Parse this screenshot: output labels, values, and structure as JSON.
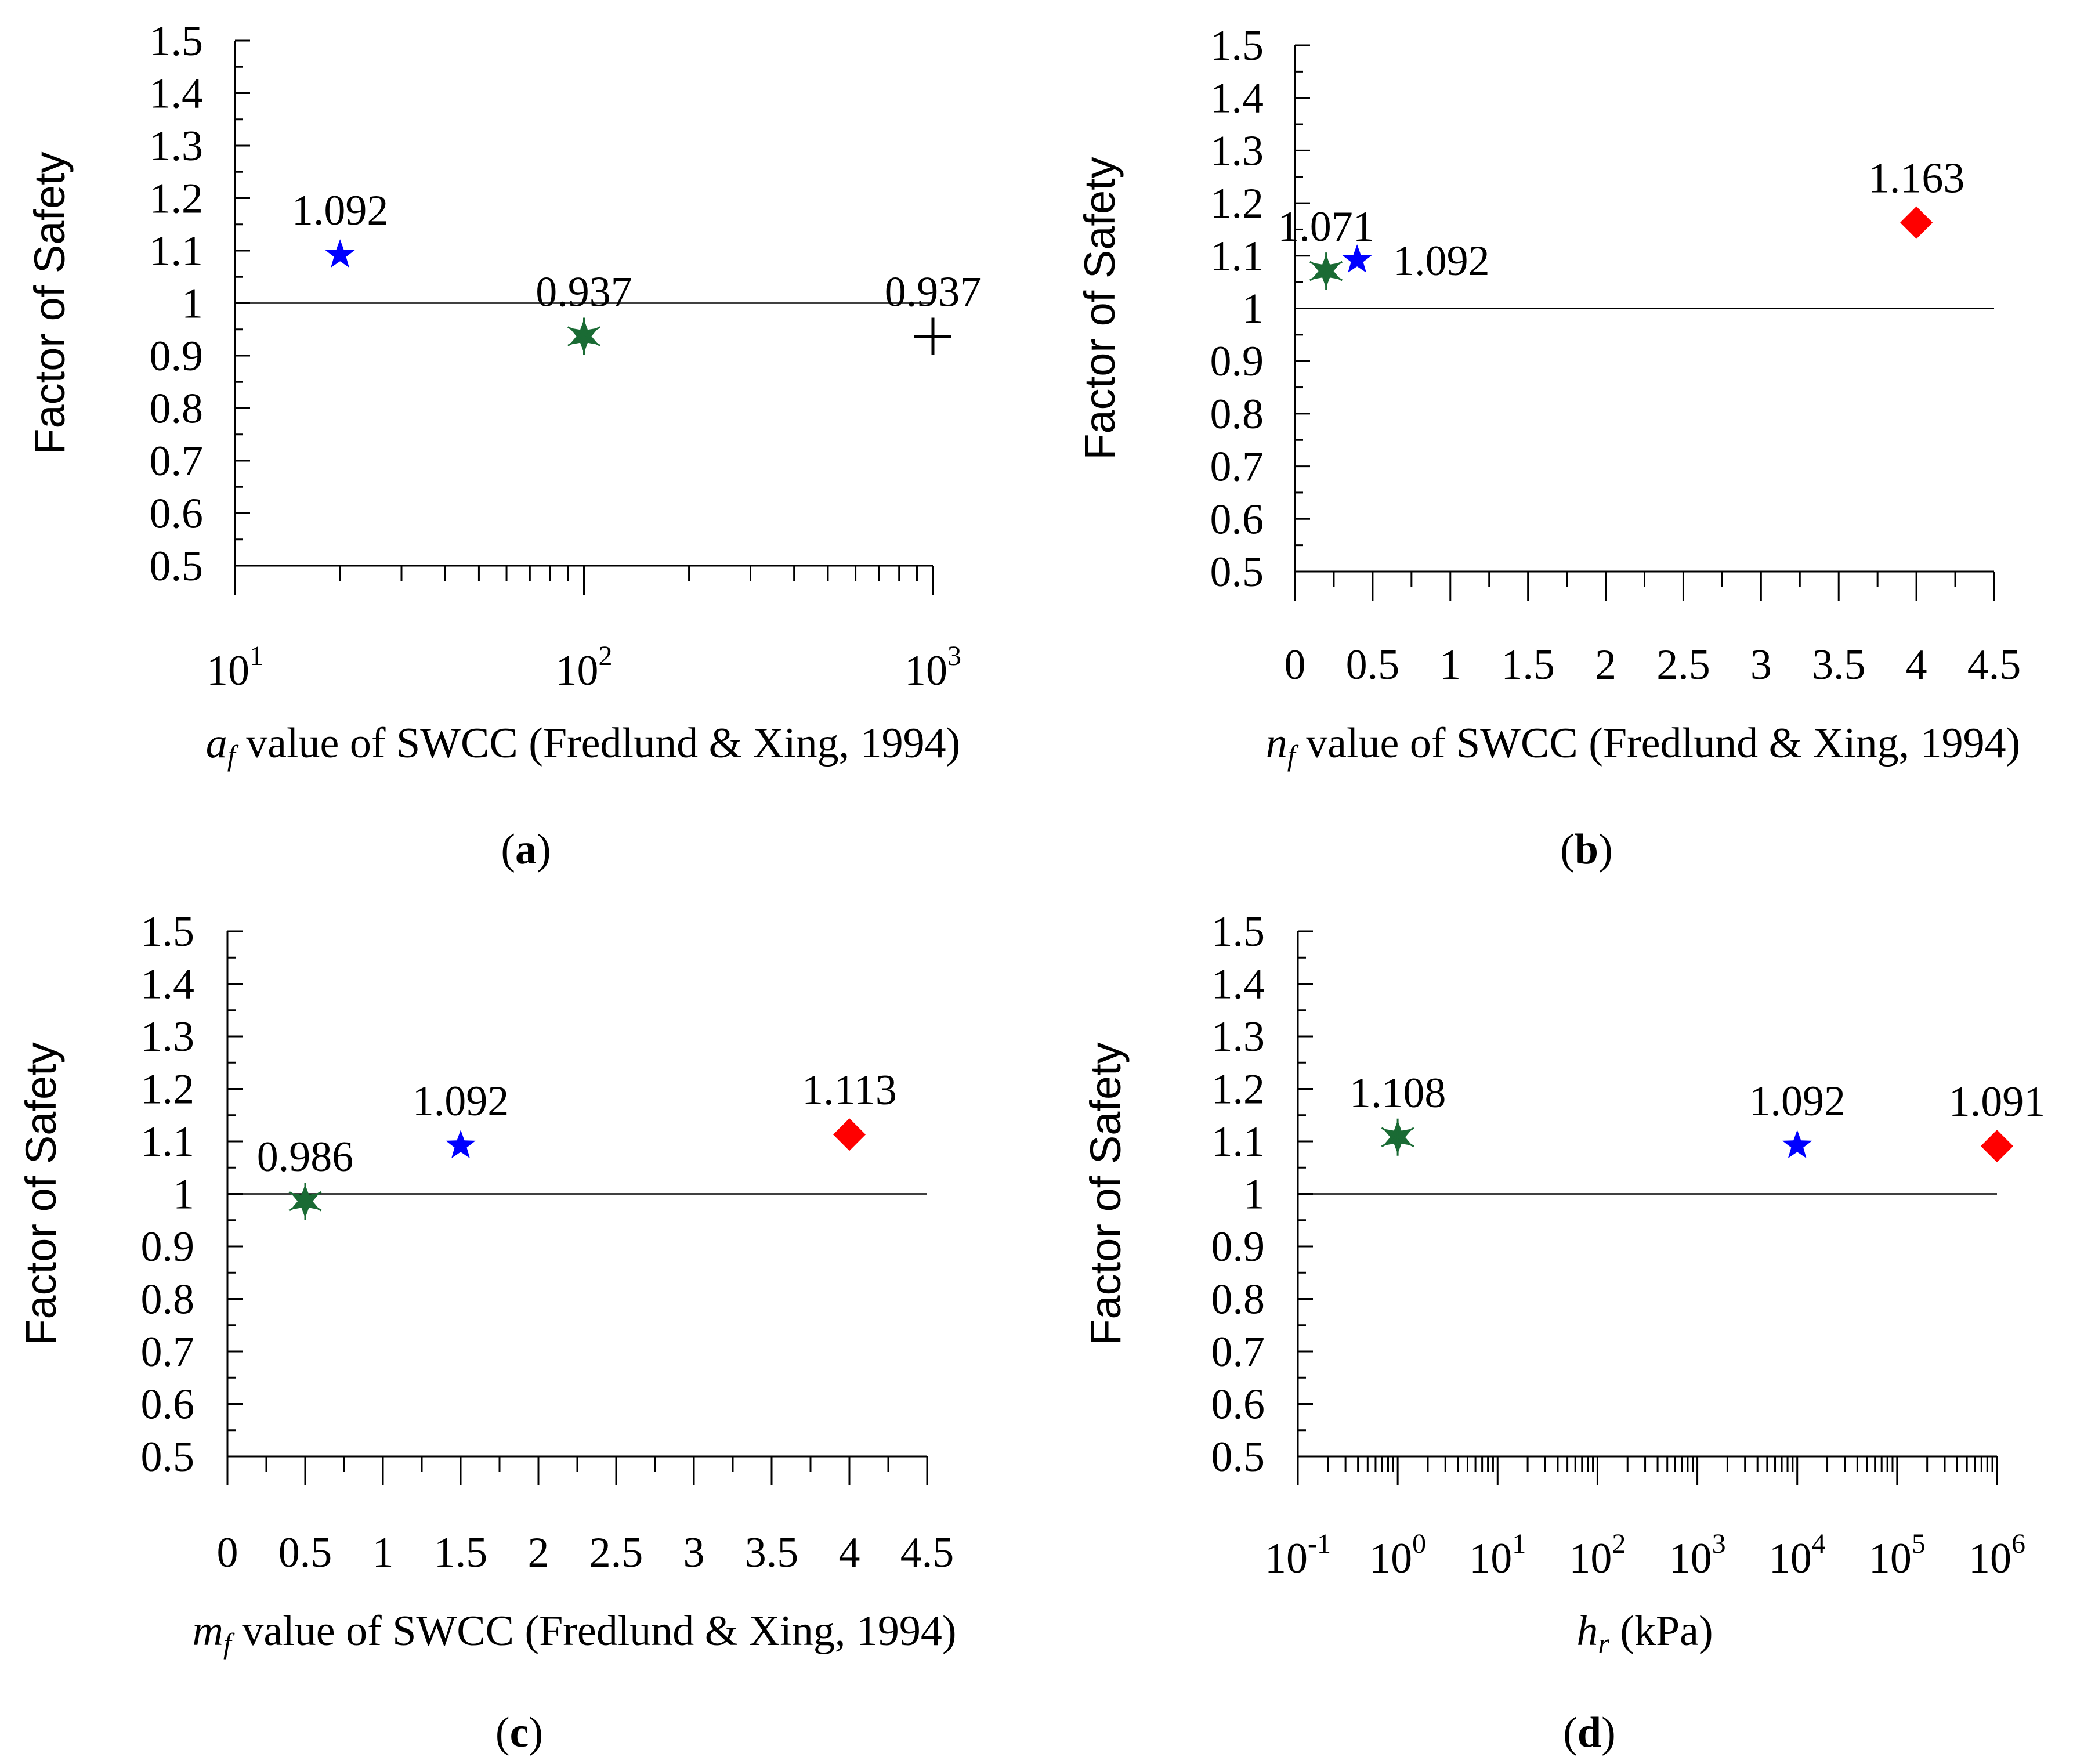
{
  "figure": {
    "y_axis_title": "Factor of Safety",
    "colors": {
      "blue_star": "#0000ff",
      "green_asterisk": "#1a6b34",
      "red_diamond": "#ff0000",
      "black_plus": "#000000",
      "axis": "#000000"
    }
  },
  "chart_data": [
    {
      "type": "scatter",
      "panel": "a",
      "panel_label": {
        "open": "(",
        "letter": "a",
        "close": ")"
      },
      "xlabel": {
        "var": "a",
        "sub": "f",
        "rest": " value of SWCC (Fredlund & Xing, 1994)"
      },
      "ylabel": "Factor of Safety",
      "xscale": "log",
      "xlim": [
        10,
        1000
      ],
      "ylim": [
        0.5,
        1.5
      ],
      "xticks": [
        {
          "base": "10",
          "exp": "1",
          "value": 10
        },
        {
          "base": "10",
          "exp": "2",
          "value": 100
        },
        {
          "base": "10",
          "exp": "3",
          "value": 1000
        }
      ],
      "yticks": [
        "0.5",
        "0.6",
        "0.7",
        "0.8",
        "0.9",
        "1",
        "1.1",
        "1.2",
        "1.3",
        "1.4",
        "1.5"
      ],
      "reference_line_y": 1,
      "reference_line_x_range": [
        10,
        1000
      ],
      "points": [
        {
          "x": 20,
          "y": 1.092,
          "label": "1.092",
          "marker": "star",
          "color": "#0000ff",
          "label_pos": "above"
        },
        {
          "x": 100,
          "y": 0.937,
          "label": "0.937",
          "marker": "asterisk",
          "color": "#1a6b34",
          "label_pos": "above"
        },
        {
          "x": 1000,
          "y": 0.937,
          "label": "0.937",
          "marker": "plus",
          "color": "#000000",
          "label_pos": "above"
        }
      ]
    },
    {
      "type": "scatter",
      "panel": "b",
      "panel_label": {
        "open": "(",
        "letter": "b",
        "close": ")"
      },
      "xlabel": {
        "var": "n",
        "sub": "f",
        "rest": " value of SWCC (Fredlund & Xing, 1994)"
      },
      "ylabel": "Factor of Safety",
      "xscale": "linear",
      "xlim": [
        0,
        4.5
      ],
      "ylim": [
        0.5,
        1.5
      ],
      "xticks": [
        {
          "label": "0",
          "value": 0
        },
        {
          "label": "0.5",
          "value": 0.5
        },
        {
          "label": "1",
          "value": 1
        },
        {
          "label": "1.5",
          "value": 1.5
        },
        {
          "label": "2",
          "value": 2
        },
        {
          "label": "2.5",
          "value": 2.5
        },
        {
          "label": "3",
          "value": 3
        },
        {
          "label": "3.5",
          "value": 3.5
        },
        {
          "label": "4",
          "value": 4
        },
        {
          "label": "4.5",
          "value": 4.5
        }
      ],
      "yticks": [
        "0.5",
        "0.6",
        "0.7",
        "0.8",
        "0.9",
        "1",
        "1.1",
        "1.2",
        "1.3",
        "1.4",
        "1.5"
      ],
      "reference_line_y": 1,
      "reference_line_x_range": [
        0,
        4.5
      ],
      "points": [
        {
          "x": 0.2,
          "y": 1.071,
          "label": "1.071",
          "marker": "asterisk",
          "color": "#1a6b34",
          "label_pos": "above"
        },
        {
          "x": 0.4,
          "y": 1.092,
          "label": "1.092",
          "marker": "star",
          "color": "#0000ff",
          "label_pos": "right"
        },
        {
          "x": 4.0,
          "y": 1.163,
          "label": "1.163",
          "marker": "diamond",
          "color": "#ff0000",
          "label_pos": "above"
        }
      ]
    },
    {
      "type": "scatter",
      "panel": "c",
      "panel_label": {
        "open": "(",
        "letter": "c",
        "close": ")"
      },
      "xlabel": {
        "var": "m",
        "sub": "f",
        "rest": "  value of SWCC (Fredlund & Xing, 1994)"
      },
      "ylabel": "Factor of Safety",
      "xscale": "linear",
      "xlim": [
        0,
        4.5
      ],
      "ylim": [
        0.5,
        1.5
      ],
      "xticks": [
        {
          "label": "0",
          "value": 0
        },
        {
          "label": "0.5",
          "value": 0.5
        },
        {
          "label": "1",
          "value": 1
        },
        {
          "label": "1.5",
          "value": 1.5
        },
        {
          "label": "2",
          "value": 2
        },
        {
          "label": "2.5",
          "value": 2.5
        },
        {
          "label": "3",
          "value": 3
        },
        {
          "label": "3.5",
          "value": 3.5
        },
        {
          "label": "4",
          "value": 4
        },
        {
          "label": "4.5",
          "value": 4.5
        }
      ],
      "yticks": [
        "0.5",
        "0.6",
        "0.7",
        "0.8",
        "0.9",
        "1",
        "1.1",
        "1.2",
        "1.3",
        "1.4",
        "1.5"
      ],
      "reference_line_y": 1,
      "reference_line_x_range": [
        0,
        4.5
      ],
      "points": [
        {
          "x": 0.5,
          "y": 0.986,
          "label": "0.986",
          "marker": "asterisk",
          "color": "#1a6b34",
          "label_pos": "above"
        },
        {
          "x": 1.5,
          "y": 1.092,
          "label": "1.092",
          "marker": "star",
          "color": "#0000ff",
          "label_pos": "above"
        },
        {
          "x": 4.0,
          "y": 1.113,
          "label": "1.113",
          "marker": "diamond",
          "color": "#ff0000",
          "label_pos": "above"
        }
      ]
    },
    {
      "type": "scatter",
      "panel": "d",
      "panel_label": {
        "open": "(",
        "letter": "d",
        "close": ")"
      },
      "xlabel": {
        "var": "h",
        "sub": "r",
        "rest": " (kPa)"
      },
      "ylabel": "Factor of Safety",
      "xscale": "log",
      "xlim": [
        0.1,
        1000000
      ],
      "ylim": [
        0.5,
        1.5
      ],
      "xticks": [
        {
          "base": "10",
          "exp": "-1",
          "value": 0.1
        },
        {
          "base": "10",
          "exp": "0",
          "value": 1
        },
        {
          "base": "10",
          "exp": "1",
          "value": 10
        },
        {
          "base": "10",
          "exp": "2",
          "value": 100
        },
        {
          "base": "10",
          "exp": "3",
          "value": 1000
        },
        {
          "base": "10",
          "exp": "4",
          "value": 10000
        },
        {
          "base": "10",
          "exp": "5",
          "value": 100000
        },
        {
          "base": "10",
          "exp": "6",
          "value": 1000000
        }
      ],
      "yticks": [
        "0.5",
        "0.6",
        "0.7",
        "0.8",
        "0.9",
        "1",
        "1.1",
        "1.2",
        "1.3",
        "1.4",
        "1.5"
      ],
      "reference_line_y": 1,
      "reference_line_x_range": [
        0.1,
        1000000
      ],
      "points": [
        {
          "x": 1,
          "y": 1.108,
          "label": "1.108",
          "marker": "asterisk",
          "color": "#1a6b34",
          "label_pos": "above"
        },
        {
          "x": 10000,
          "y": 1.092,
          "label": "1.092",
          "marker": "star",
          "color": "#0000ff",
          "label_pos": "above"
        },
        {
          "x": 1000000,
          "y": 1.091,
          "label": "1.091",
          "marker": "diamond",
          "color": "#ff0000",
          "label_pos": "above"
        }
      ]
    }
  ]
}
